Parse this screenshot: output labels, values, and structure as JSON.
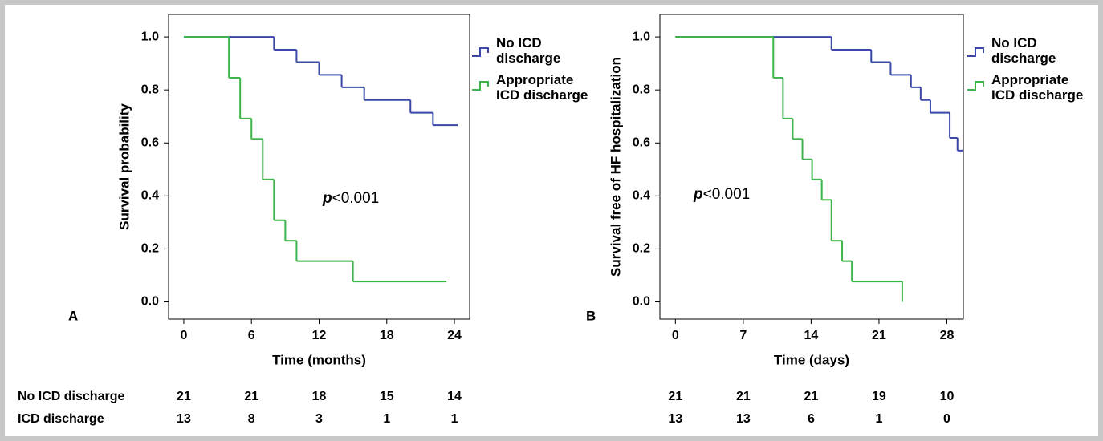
{
  "chart_data": [
    {
      "type": "step",
      "panel_label": "A",
      "ylabel": "Survival probability",
      "xlabel": "Time (months)",
      "annotation": {
        "italic": "p",
        "text": "<0.001"
      },
      "xlim": [
        -1.35,
        25.35
      ],
      "ylim": [
        -0.065,
        1.085
      ],
      "xticks": [
        0,
        6,
        12,
        18,
        24
      ],
      "yticks": [
        {
          "value": 0,
          "label": "0.0"
        },
        0.2,
        0.4,
        0.6,
        0.8,
        {
          "value": 1,
          "label": "1.0"
        }
      ],
      "series": [
        {
          "name": "No ICD discharge",
          "color": "#3b48a8",
          "x": [
            0,
            8,
            10,
            12,
            14,
            16,
            20.1,
            22.1,
            24.3
          ],
          "values": [
            1,
            0.952,
            0.905,
            0.857,
            0.81,
            0.762,
            0.714,
            0.667,
            0.667
          ]
        },
        {
          "name": "Appropriate ICD discharge",
          "color": "#3db54a",
          "x": [
            0,
            4,
            5,
            6,
            7,
            8,
            9,
            10,
            15,
            23.3
          ],
          "values": [
            1,
            0.846,
            0.692,
            0.615,
            0.462,
            0.308,
            0.231,
            0.154,
            0.077,
            0.077
          ]
        }
      ],
      "at_risk_labels": [
        "No ICD discharge",
        "ICD discharge"
      ],
      "at_risk": [
        [
          21,
          21,
          18,
          15,
          14
        ],
        [
          13,
          8,
          3,
          1,
          1
        ]
      ]
    },
    {
      "type": "step",
      "panel_label": "B",
      "ylabel": "Survival free of HF hospitalization",
      "xlabel": "Time (days)",
      "annotation": {
        "italic": "p",
        "text": "<0.001"
      },
      "xlim": [
        -1.6,
        29.7
      ],
      "ylim": [
        -0.065,
        1.085
      ],
      "xticks": [
        0,
        7,
        14,
        21,
        28
      ],
      "yticks": [
        {
          "value": 0,
          "label": "0.0"
        },
        0.2,
        0.4,
        0.6,
        0.8,
        {
          "value": 1,
          "label": "1.0"
        }
      ],
      "series": [
        {
          "name": "No ICD discharge",
          "color": "#3b48a8",
          "x": [
            0,
            16.1,
            20.2,
            22.2,
            24.3,
            25.3,
            26.3,
            28.3,
            29.1,
            29.7
          ],
          "values": [
            1,
            0.952,
            0.905,
            0.857,
            0.81,
            0.762,
            0.714,
            0.619,
            0.571,
            0.571
          ]
        },
        {
          "name": "Appropriate ICD discharge",
          "color": "#3db54a",
          "x": [
            0,
            10.1,
            11.1,
            12.1,
            13.1,
            14.1,
            15.1,
            16.1,
            17.2,
            18.2,
            23.4
          ],
          "values": [
            1,
            0.846,
            0.692,
            0.615,
            0.538,
            0.462,
            0.385,
            0.231,
            0.154,
            0.077,
            0
          ]
        }
      ],
      "at_risk": [
        [
          21,
          21,
          21,
          19,
          10
        ],
        [
          13,
          13,
          6,
          1,
          0
        ]
      ]
    }
  ]
}
